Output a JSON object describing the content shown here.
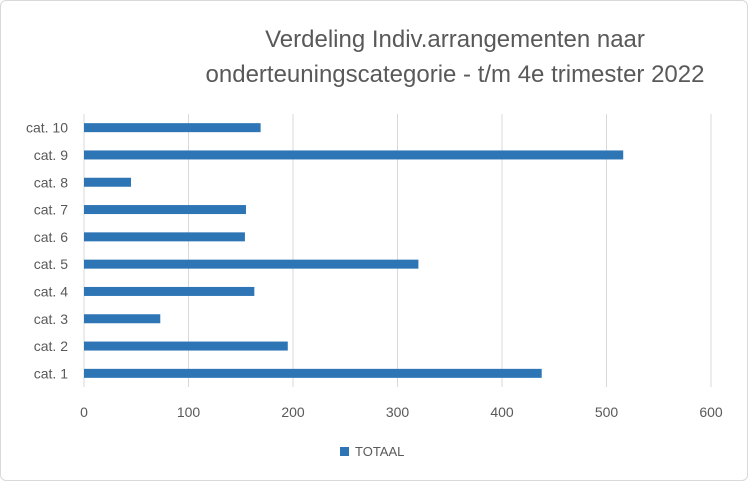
{
  "chart_data": {
    "type": "bar",
    "orientation": "horizontal",
    "title_lines": [
      "Verdeling Indiv.arrangementen naar",
      "onderteuningscategorie - t/m 4e trimester 2022"
    ],
    "categories": [
      "cat. 1",
      "cat. 2",
      "cat. 3",
      "cat. 4",
      "cat. 5",
      "cat. 6",
      "cat. 7",
      "cat. 8",
      "cat. 9",
      "cat. 10"
    ],
    "series": [
      {
        "name": "TOTAAL",
        "values": [
          438,
          195,
          73,
          163,
          320,
          154,
          155,
          45,
          516,
          169
        ],
        "color": "#2e75b6"
      }
    ],
    "xlim": [
      0,
      600
    ],
    "xticks": [
      "0",
      "100",
      "200",
      "300",
      "400",
      "500",
      "600"
    ],
    "grid": true,
    "legend_position": "bottom"
  }
}
